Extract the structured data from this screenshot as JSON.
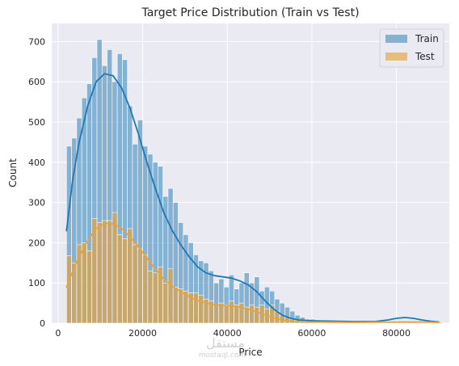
{
  "chart_data": {
    "type": "histogram",
    "title": "Target Price Distribution (Train vs Test)",
    "xlabel": "Price",
    "ylabel": "Count",
    "xlim": [
      -1500,
      92500
    ],
    "ylim": [
      0,
      745
    ],
    "xticks": [
      0,
      20000,
      40000,
      60000,
      80000
    ],
    "yticks": [
      0,
      100,
      200,
      300,
      400,
      500,
      600,
      700
    ],
    "grid": true,
    "legend": "top-right",
    "bin_start": 2000,
    "bin_width": 1200,
    "series": [
      {
        "name": "Train",
        "color": "#1f77b4",
        "values": [
          440,
          460,
          510,
          560,
          595,
          660,
          705,
          640,
          680,
          600,
          670,
          655,
          540,
          445,
          505,
          440,
          420,
          400,
          390,
          315,
          335,
          300,
          250,
          220,
          200,
          170,
          155,
          150,
          130,
          100,
          110,
          90,
          120,
          85,
          100,
          125,
          100,
          115,
          80,
          90,
          80,
          60,
          50,
          40,
          30,
          20,
          15,
          10,
          10,
          8,
          7,
          6,
          6,
          5,
          5,
          5,
          4,
          4,
          4,
          3,
          3,
          3,
          3,
          3,
          3,
          3,
          3,
          3,
          3,
          3,
          3,
          3,
          3,
          3
        ],
        "kde": [
          [
            2000,
            230
          ],
          [
            3500,
            360
          ],
          [
            5000,
            450
          ],
          [
            7000,
            540
          ],
          [
            9000,
            600
          ],
          [
            11000,
            620
          ],
          [
            13000,
            615
          ],
          [
            15000,
            585
          ],
          [
            17000,
            535
          ],
          [
            19000,
            470
          ],
          [
            21000,
            400
          ],
          [
            23000,
            335
          ],
          [
            25000,
            275
          ],
          [
            27000,
            230
          ],
          [
            29000,
            195
          ],
          [
            31000,
            165
          ],
          [
            33000,
            140
          ],
          [
            35000,
            125
          ],
          [
            37000,
            118
          ],
          [
            39000,
            115
          ],
          [
            41000,
            112
          ],
          [
            43000,
            105
          ],
          [
            45000,
            95
          ],
          [
            47000,
            78
          ],
          [
            49000,
            55
          ],
          [
            51000,
            35
          ],
          [
            53000,
            20
          ],
          [
            55000,
            12
          ],
          [
            57000,
            8
          ],
          [
            60000,
            6
          ],
          [
            65000,
            5
          ],
          [
            70000,
            4
          ],
          [
            75000,
            4
          ],
          [
            78000,
            8
          ],
          [
            80000,
            12
          ],
          [
            82000,
            14
          ],
          [
            84000,
            12
          ],
          [
            86000,
            8
          ],
          [
            88000,
            5
          ],
          [
            90000,
            3
          ]
        ]
      },
      {
        "name": "Test",
        "color": "#e8a33c",
        "values": [
          168,
          150,
          195,
          200,
          180,
          260,
          250,
          255,
          255,
          275,
          220,
          210,
          235,
          195,
          185,
          170,
          130,
          125,
          140,
          100,
          135,
          90,
          85,
          80,
          75,
          75,
          70,
          60,
          55,
          45,
          50,
          45,
          55,
          45,
          50,
          40,
          45,
          40,
          45,
          35,
          45,
          30,
          20,
          15,
          10,
          8,
          6,
          5,
          5,
          4,
          4,
          4,
          3,
          3,
          3,
          3,
          3,
          3,
          3,
          3,
          3,
          3,
          3,
          3,
          3,
          3,
          3,
          3,
          3,
          3,
          3,
          3,
          3,
          3
        ],
        "kde": [
          [
            2000,
            90
          ],
          [
            3500,
            130
          ],
          [
            5000,
            165
          ],
          [
            7000,
            205
          ],
          [
            9000,
            235
          ],
          [
            11000,
            248
          ],
          [
            13000,
            247
          ],
          [
            15000,
            235
          ],
          [
            17000,
            215
          ],
          [
            19000,
            190
          ],
          [
            21000,
            162
          ],
          [
            23000,
            135
          ],
          [
            25000,
            110
          ],
          [
            27000,
            92
          ],
          [
            29000,
            78
          ],
          [
            31000,
            66
          ],
          [
            33000,
            56
          ],
          [
            35000,
            50
          ],
          [
            37000,
            46
          ],
          [
            39000,
            44
          ],
          [
            41000,
            43
          ],
          [
            43000,
            40
          ],
          [
            45000,
            35
          ],
          [
            47000,
            28
          ],
          [
            49000,
            20
          ],
          [
            51000,
            13
          ],
          [
            53000,
            8
          ],
          [
            55000,
            5
          ],
          [
            60000,
            3
          ],
          [
            70000,
            2
          ],
          [
            80000,
            3
          ],
          [
            85000,
            3
          ],
          [
            90000,
            2
          ]
        ]
      }
    ]
  },
  "watermark": {
    "arabic": "مستقل",
    "latin": "mostaql.com"
  }
}
